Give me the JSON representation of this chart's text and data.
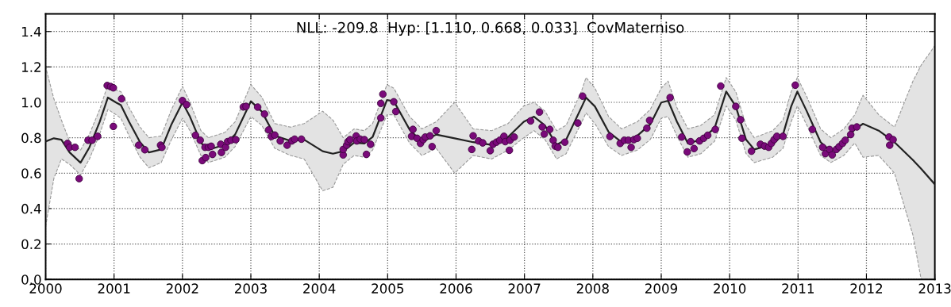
{
  "chart_data": {
    "type": "line",
    "annotations": [
      "NLL: -209.8  Hyp: [1.110, 0.668, 0.033]  CovMaterniso"
    ],
    "xlim": [
      2000,
      2013
    ],
    "xticks": [
      2000,
      2001,
      2002,
      2003,
      2004,
      2005,
      2006,
      2007,
      2008,
      2009,
      2010,
      2011,
      2012,
      2013
    ],
    "ylim": [
      0,
      1.5
    ],
    "yticks": [
      {
        "value": 0,
        "label": "0.0"
      },
      {
        "value": 0.2,
        "label": "0.2"
      },
      {
        "value": 0.4,
        "label": "0.4"
      },
      {
        "value": 0.6,
        "label": "0.6"
      },
      {
        "value": 0.8,
        "label": "0.8"
      },
      {
        "value": 1.0,
        "label": "1.0"
      },
      {
        "value": 1.2,
        "label": "1.2"
      },
      {
        "value": 1.4,
        "label": "1.4"
      }
    ],
    "grid": true,
    "legend": false,
    "series": [
      {
        "color": "#222222",
        "marker": "none",
        "line_style": "solid",
        "x": [
          2000.0,
          2000.12,
          2000.23,
          2000.35,
          2000.51,
          2000.64,
          2000.79,
          2000.91,
          2001.03,
          2001.1,
          2001.22,
          2001.38,
          2001.51,
          2001.69,
          2001.84,
          2002.0,
          2002.11,
          2002.27,
          2002.38,
          2002.62,
          2002.77,
          2003.0,
          2003.16,
          2003.35,
          2003.58,
          2003.78,
          2004.05,
          2004.2,
          2004.35,
          2004.51,
          2004.66,
          2004.78,
          2004.99,
          2005.09,
          2005.32,
          2005.5,
          2005.71,
          2005.98,
          2006.25,
          2006.52,
          2006.76,
          2006.99,
          2007.14,
          2007.3,
          2007.47,
          2007.61,
          2007.84,
          2007.9,
          2008.03,
          2008.23,
          2008.42,
          2008.65,
          2008.84,
          2009.0,
          2009.1,
          2009.23,
          2009.39,
          2009.58,
          2009.78,
          2009.95,
          2010.09,
          2010.24,
          2010.36,
          2010.63,
          2010.78,
          2010.9,
          2010.99,
          2011.13,
          2011.33,
          2011.48,
          2011.67,
          2011.83,
          2011.95,
          2012.18,
          2012.41,
          2012.68,
          2012.8,
          2013.0
        ],
        "values": [
          0.779,
          0.797,
          0.789,
          0.717,
          0.659,
          0.746,
          0.89,
          1.027,
          0.999,
          0.984,
          0.89,
          0.775,
          0.717,
          0.734,
          0.876,
          0.999,
          0.919,
          0.772,
          0.732,
          0.76,
          0.818,
          1.006,
          0.948,
          0.811,
          0.782,
          0.789,
          0.724,
          0.71,
          0.724,
          0.772,
          0.768,
          0.804,
          1.013,
          1.006,
          0.847,
          0.775,
          0.818,
          0.797,
          0.775,
          0.76,
          0.804,
          0.89,
          0.919,
          0.869,
          0.76,
          0.789,
          0.977,
          1.027,
          0.977,
          0.833,
          0.775,
          0.811,
          0.876,
          0.999,
          1.009,
          0.89,
          0.768,
          0.789,
          0.854,
          1.061,
          0.977,
          0.789,
          0.734,
          0.763,
          0.818,
          0.977,
          1.061,
          0.948,
          0.775,
          0.724,
          0.775,
          0.847,
          0.879,
          0.84,
          0.775,
          0.674,
          0.625,
          0.537
        ],
        "upper": [
          1.2,
          1.02,
          0.9,
          0.78,
          0.73,
          0.82,
          0.96,
          1.1,
          1.07,
          1.06,
          0.97,
          0.86,
          0.8,
          0.81,
          0.96,
          1.09,
          1.0,
          0.84,
          0.8,
          0.83,
          0.89,
          1.1,
          1.03,
          0.88,
          0.86,
          0.88,
          0.95,
          0.9,
          0.8,
          0.85,
          0.84,
          0.88,
          1.1,
          1.08,
          0.92,
          0.85,
          0.89,
          1.0,
          0.85,
          0.84,
          0.88,
          0.98,
          1.0,
          0.95,
          0.84,
          0.87,
          1.07,
          1.14,
          1.08,
          0.92,
          0.85,
          0.89,
          0.96,
          1.08,
          1.12,
          0.97,
          0.85,
          0.87,
          0.93,
          1.14,
          1.06,
          0.87,
          0.8,
          0.84,
          0.9,
          1.06,
          1.14,
          1.03,
          0.85,
          0.8,
          0.85,
          0.93,
          1.04,
          0.93,
          0.86,
          1.12,
          1.21,
          1.32
        ],
        "lower": [
          0.3,
          0.57,
          0.68,
          0.65,
          0.59,
          0.68,
          0.82,
          0.96,
          0.93,
          0.91,
          0.81,
          0.69,
          0.63,
          0.66,
          0.79,
          0.91,
          0.84,
          0.7,
          0.66,
          0.69,
          0.75,
          0.92,
          0.87,
          0.74,
          0.7,
          0.68,
          0.5,
          0.52,
          0.65,
          0.7,
          0.69,
          0.73,
          0.93,
          0.93,
          0.77,
          0.7,
          0.74,
          0.6,
          0.7,
          0.68,
          0.73,
          0.8,
          0.84,
          0.79,
          0.68,
          0.71,
          0.89,
          0.94,
          0.88,
          0.75,
          0.7,
          0.73,
          0.79,
          0.91,
          0.92,
          0.81,
          0.69,
          0.71,
          0.78,
          0.98,
          0.9,
          0.71,
          0.66,
          0.69,
          0.74,
          0.89,
          0.98,
          0.87,
          0.7,
          0.66,
          0.7,
          0.77,
          0.69,
          0.7,
          0.6,
          0.25,
          0.0,
          0.0
        ]
      },
      {
        "type": "scatter",
        "color": "#7a0a7a",
        "marker": "circle",
        "x": [
          2000.32,
          2000.35,
          2000.43,
          2000.49,
          2000.62,
          2000.68,
          2000.76,
          2000.9,
          2000.95,
          2000.99,
          2000.99,
          2001.11,
          2001.36,
          2001.45,
          2001.68,
          2001.7,
          2002.0,
          2002.06,
          2002.19,
          2002.26,
          2002.29,
          2002.34,
          2002.33,
          2002.38,
          2002.42,
          2002.44,
          2002.56,
          2002.57,
          2002.63,
          2002.66,
          2002.71,
          2002.78,
          2002.89,
          2002.93,
          2003.1,
          2003.2,
          2003.26,
          2003.3,
          2003.35,
          2003.43,
          2003.53,
          2003.6,
          2003.64,
          2003.74,
          2004.35,
          2004.35,
          2004.4,
          2004.42,
          2004.45,
          2004.54,
          2004.55,
          2004.6,
          2004.66,
          2004.69,
          2004.75,
          2004.9,
          2004.9,
          2004.93,
          2005.09,
          2005.12,
          2005.37,
          2005.35,
          2005.43,
          2005.48,
          2005.52,
          2005.55,
          2005.62,
          2005.65,
          2005.71,
          2006.23,
          2006.25,
          2006.33,
          2006.39,
          2006.5,
          2006.54,
          2006.59,
          2006.64,
          2006.7,
          2006.72,
          2006.78,
          2006.79,
          2006.85,
          2007.09,
          2007.22,
          2007.26,
          2007.29,
          2007.37,
          2007.42,
          2007.45,
          2007.49,
          2007.59,
          2007.78,
          2007.85,
          2008.25,
          2008.4,
          2008.46,
          2008.52,
          2008.56,
          2008.6,
          2008.65,
          2008.79,
          2008.83,
          2009.13,
          2009.3,
          2009.38,
          2009.43,
          2009.48,
          2009.56,
          2009.62,
          2009.68,
          2009.79,
          2009.87,
          2010.09,
          2010.16,
          2010.18,
          2010.32,
          2010.45,
          2010.51,
          2010.57,
          2010.61,
          2010.65,
          2010.69,
          2010.78,
          2010.96,
          2011.21,
          2011.36,
          2011.4,
          2011.46,
          2011.5,
          2011.56,
          2011.6,
          2011.65,
          2011.69,
          2011.77,
          2011.79,
          2011.86,
          2012.33,
          2012.34,
          2012.39
        ],
        "values": [
          0.768,
          0.746,
          0.746,
          0.569,
          0.786,
          0.786,
          0.808,
          1.095,
          1.089,
          1.082,
          0.864,
          1.02,
          0.758,
          0.732,
          0.758,
          0.746,
          1.01,
          0.987,
          0.814,
          0.786,
          0.671,
          0.688,
          0.746,
          0.746,
          0.752,
          0.706,
          0.763,
          0.717,
          0.746,
          0.778,
          0.786,
          0.789,
          0.974,
          0.977,
          0.973,
          0.934,
          0.844,
          0.807,
          0.815,
          0.782,
          0.758,
          0.782,
          0.792,
          0.792,
          0.703,
          0.734,
          0.758,
          0.778,
          0.789,
          0.81,
          0.782,
          0.792,
          0.789,
          0.706,
          0.763,
          0.912,
          0.994,
          1.046,
          1.003,
          0.948,
          0.847,
          0.808,
          0.797,
          0.768,
          0.789,
          0.804,
          0.811,
          0.75,
          0.84,
          0.734,
          0.811,
          0.782,
          0.771,
          0.727,
          0.763,
          0.775,
          0.786,
          0.808,
          0.778,
          0.729,
          0.786,
          0.804,
          0.895,
          0.945,
          0.861,
          0.821,
          0.847,
          0.786,
          0.753,
          0.746,
          0.775,
          0.883,
          1.035,
          0.807,
          0.768,
          0.786,
          0.786,
          0.746,
          0.789,
          0.797,
          0.854,
          0.898,
          1.027,
          0.804,
          0.72,
          0.778,
          0.739,
          0.782,
          0.797,
          0.814,
          0.847,
          1.092,
          0.977,
          0.902,
          0.797,
          0.724,
          0.763,
          0.753,
          0.746,
          0.768,
          0.789,
          0.808,
          0.808,
          1.097,
          0.847,
          0.746,
          0.71,
          0.734,
          0.703,
          0.734,
          0.749,
          0.768,
          0.786,
          0.818,
          0.854,
          0.861,
          0.804,
          0.758,
          0.789
        ]
      }
    ]
  }
}
